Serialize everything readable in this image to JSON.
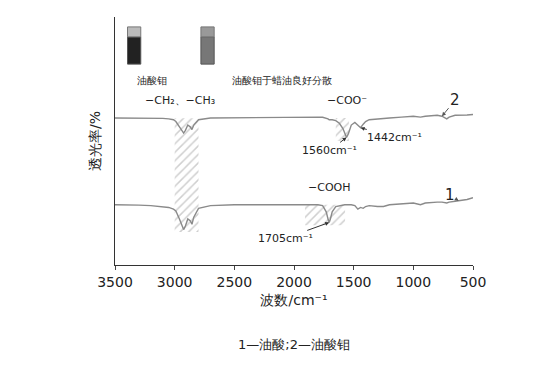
{
  "chart_data": {
    "type": "line",
    "x_title": "波数/cm⁻¹",
    "y_title": "透光率/%",
    "caption": "1—油酸;2—油酸钼",
    "x": [
      3500,
      3400,
      3300,
      3200,
      3100,
      3050,
      3010,
      2990,
      2960,
      2940,
      2925,
      2910,
      2890,
      2870,
      2855,
      2840,
      2800,
      2700,
      2500,
      2300,
      2100,
      1900,
      1800,
      1760,
      1730,
      1715,
      1705,
      1695,
      1680,
      1650,
      1620,
      1590,
      1575,
      1560,
      1545,
      1520,
      1490,
      1465,
      1442,
      1420,
      1400,
      1370,
      1300,
      1250,
      1200,
      1100,
      1000,
      940,
      900,
      800,
      760,
      720,
      700,
      650,
      600,
      550,
      500
    ],
    "series": [
      {
        "name": "1",
        "color": "#8a8a8a",
        "values": [
          34,
          34,
          33.8,
          33.5,
          33,
          32.5,
          31.5,
          30.5,
          26,
          22,
          20,
          22,
          26,
          25,
          23,
          27,
          32,
          33.5,
          34,
          34,
          34,
          34,
          34,
          33.5,
          30,
          26,
          24,
          26,
          30,
          33,
          33.5,
          34,
          34,
          34,
          34,
          34,
          33.5,
          31.5,
          32.5,
          32,
          33,
          33.5,
          33,
          33,
          34,
          34.5,
          35,
          34,
          35,
          35.5,
          35.5,
          35,
          35.5,
          36,
          36.5,
          37,
          38
        ]
      },
      {
        "name": "2",
        "color": "#8a8a8a",
        "values": [
          83,
          83,
          83,
          83,
          82.8,
          82.5,
          82,
          81,
          78,
          76,
          74.5,
          76,
          79,
          78,
          76.5,
          79,
          82,
          83,
          83.2,
          83.3,
          83.4,
          83.5,
          83.5,
          83.4,
          83,
          82.5,
          82,
          82,
          82,
          81.5,
          80,
          77,
          74,
          72,
          74,
          79,
          80.5,
          79,
          77.5,
          79.5,
          81,
          82,
          82.5,
          83,
          83,
          83.5,
          84,
          83.5,
          84,
          84.5,
          84,
          82.5,
          83.5,
          84.5,
          84.5,
          84.7,
          85
        ]
      }
    ],
    "xlim": [
      3500,
      500
    ],
    "xticks": [
      3500,
      3000,
      2500,
      2000,
      1500,
      1000,
      500
    ],
    "ylim": [
      0,
      140
    ],
    "tick_labels": "x",
    "grid": false,
    "bands": [
      {
        "x0": 3000,
        "x1": 2800,
        "y0": 18.6,
        "y1": 82.8
      },
      {
        "x0": 1650,
        "x1": 1540,
        "y0": 70,
        "y1": 83
      },
      {
        "x0": 1908,
        "x1": 1572,
        "y0": 22.5,
        "y1": 34
      }
    ],
    "annotations": [
      {
        "text": "−CH₂、−CH₃",
        "x": 2955,
        "y": 93
      },
      {
        "text": "−COO⁻",
        "x": 1560,
        "y": 93
      },
      {
        "text": "1560cm⁻¹",
        "x": 1700,
        "y": 64.7,
        "ax": 1560,
        "ay": 72
      },
      {
        "text": "1442cm⁻¹",
        "x": 1154,
        "y": 72,
        "ax": 1442,
        "ay": 77.5
      },
      {
        "text": "−COOH",
        "x": 1700,
        "y": 44
      },
      {
        "text": "1705cm⁻¹",
        "x": 2075,
        "y": 15,
        "ax": 1705,
        "ay": 24
      }
    ],
    "curve_labels": [
      {
        "series": "1",
        "x": 693,
        "y": 39.4,
        "ax": 620,
        "ay": 36.3
      },
      {
        "series": "2",
        "x": 650,
        "y": 93,
        "ax": 760,
        "ay": 84
      }
    ],
    "inset_labels": [
      "油酸钼",
      "油酸钼于蜡油良好分散"
    ]
  }
}
